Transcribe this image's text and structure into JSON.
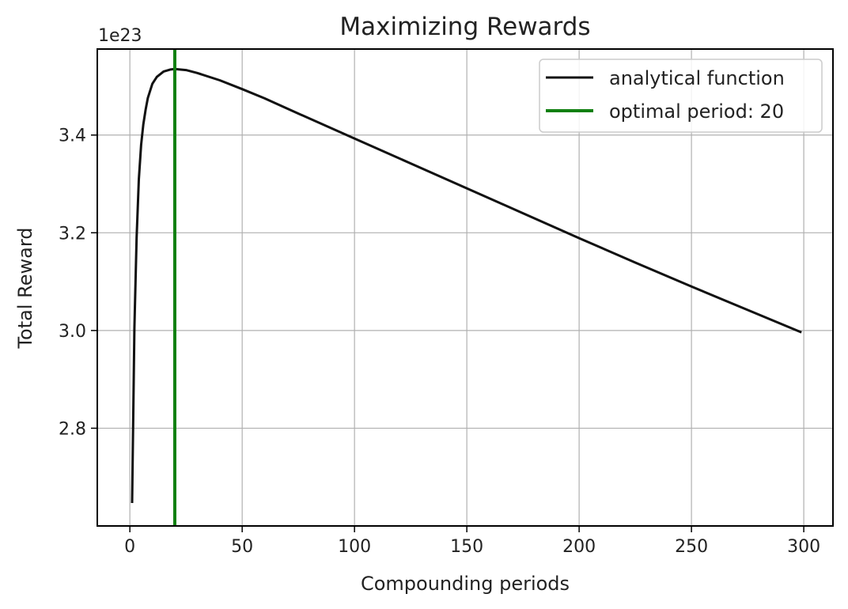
{
  "chart_data": {
    "type": "line",
    "title": "Maximizing Rewards",
    "xlabel": "Compounding periods",
    "ylabel": "Total Reward",
    "y_offset_label": "1e23",
    "xlim": [
      -14.5,
      313
    ],
    "ylim": [
      2.6,
      3.576
    ],
    "xticks": [
      0,
      50,
      100,
      150,
      200,
      250,
      300
    ],
    "xtick_labels": [
      "0",
      "50",
      "100",
      "150",
      "200",
      "250",
      "300"
    ],
    "yticks": [
      2.8,
      3.0,
      3.2,
      3.4
    ],
    "ytick_labels": [
      "2.8",
      "3.0",
      "3.2",
      "3.4"
    ],
    "grid": true,
    "legend_position": "top-right",
    "series": [
      {
        "name": "analytical function",
        "color": "#111111",
        "x": [
          1,
          2,
          3,
          4,
          5,
          6,
          7,
          8,
          10,
          12,
          15,
          18,
          20,
          25,
          30,
          40,
          50,
          60,
          75,
          100,
          125,
          150,
          175,
          200,
          225,
          250,
          275,
          299
        ],
        "y": [
          2.647,
          3.005,
          3.19,
          3.309,
          3.38,
          3.422,
          3.452,
          3.476,
          3.505,
          3.519,
          3.53,
          3.534,
          3.535,
          3.533,
          3.527,
          3.512,
          3.494,
          3.475,
          3.444,
          3.393,
          3.342,
          3.291,
          3.24,
          3.189,
          3.139,
          3.09,
          3.042,
          2.996
        ]
      }
    ],
    "vline": {
      "x": 20,
      "label": "optimal period: 20",
      "color": "#118011"
    }
  }
}
